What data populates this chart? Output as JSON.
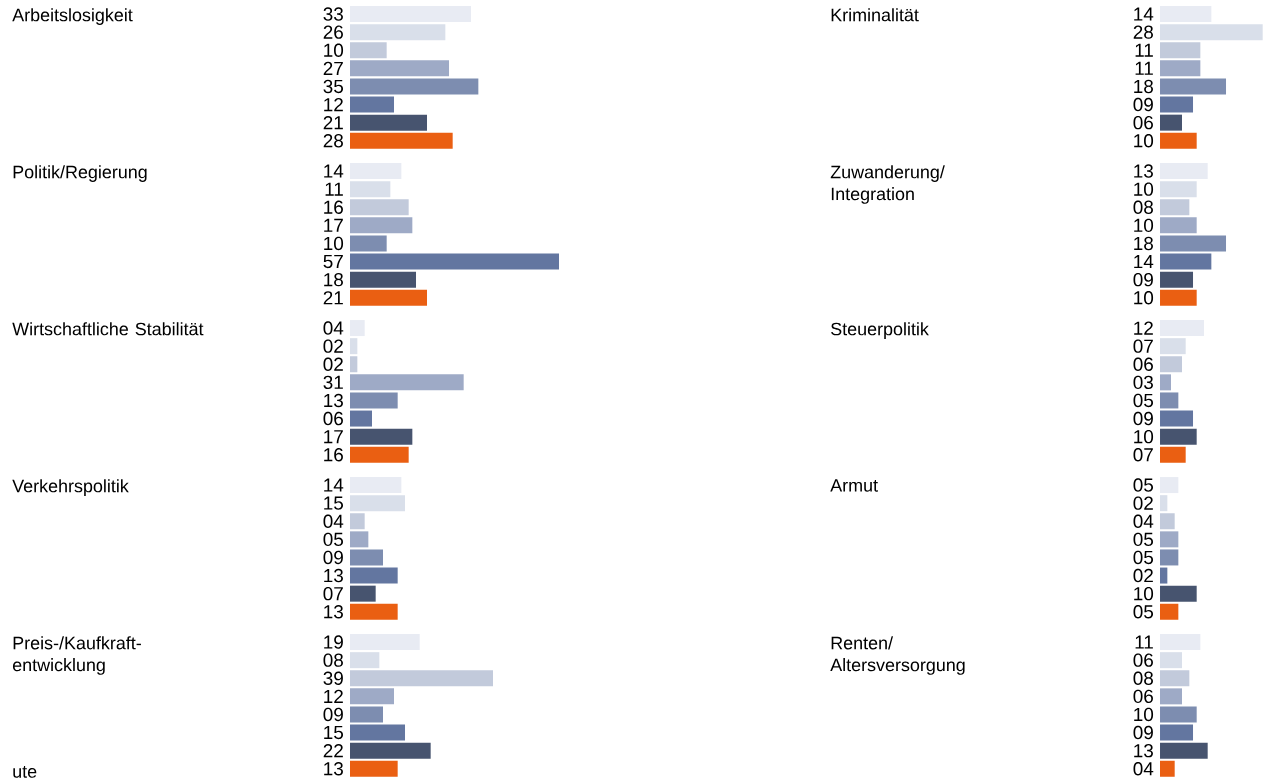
{
  "chart_data": [
    {
      "type": "bar",
      "orientation": "horizontal",
      "ylabel": "Arbeitslosigkeit",
      "categories": [
        null,
        null,
        null,
        null,
        null,
        null,
        null,
        null
      ],
      "values": [
        33,
        26,
        10,
        27,
        35,
        12,
        21,
        28
      ],
      "value_labels": [
        "33",
        "26",
        "10",
        "27",
        "35",
        "12",
        "21",
        "28"
      ],
      "colors": [
        "#e8ebf3",
        "#d9dfea",
        "#c2cadb",
        "#9eaac6",
        "#7d8db0",
        "#6376a0",
        "#47546f",
        "#ea5f12"
      ]
    },
    {
      "type": "bar",
      "orientation": "horizontal",
      "ylabel": "Kriminalität",
      "categories": [
        null,
        null,
        null,
        null,
        null,
        null,
        null,
        null
      ],
      "values": [
        14,
        28,
        11,
        11,
        18,
        9,
        6,
        10
      ],
      "value_labels": [
        "14",
        "28",
        "11",
        "11",
        "18",
        "09",
        "06",
        "10"
      ],
      "colors": [
        "#e8ebf3",
        "#d9dfea",
        "#c2cadb",
        "#9eaac6",
        "#7d8db0",
        "#6376a0",
        "#47546f",
        "#ea5f12"
      ]
    },
    {
      "type": "bar",
      "orientation": "horizontal",
      "ylabel": "Politik/Regierung",
      "categories": [
        null,
        null,
        null,
        null,
        null,
        null,
        null,
        null
      ],
      "values": [
        14,
        11,
        16,
        17,
        10,
        57,
        18,
        21
      ],
      "value_labels": [
        "14",
        "11",
        "16",
        "17",
        "10",
        "57",
        "18",
        "21"
      ],
      "colors": [
        "#e8ebf3",
        "#d9dfea",
        "#c2cadb",
        "#9eaac6",
        "#7d8db0",
        "#6376a0",
        "#47546f",
        "#ea5f12"
      ]
    },
    {
      "type": "bar",
      "orientation": "horizontal",
      "ylabel": "Zuwanderung/ Integration",
      "categories": [
        null,
        null,
        null,
        null,
        null,
        null,
        null,
        null
      ],
      "values": [
        13,
        10,
        8,
        10,
        18,
        14,
        9,
        10
      ],
      "value_labels": [
        "13",
        "10",
        "08",
        "10",
        "18",
        "14",
        "09",
        "10"
      ],
      "colors": [
        "#e8ebf3",
        "#d9dfea",
        "#c2cadb",
        "#9eaac6",
        "#7d8db0",
        "#6376a0",
        "#47546f",
        "#ea5f12"
      ]
    },
    {
      "type": "bar",
      "orientation": "horizontal",
      "ylabel": "Wirtschaftliche Stabilität",
      "categories": [
        null,
        null,
        null,
        null,
        null,
        null,
        null,
        null
      ],
      "values": [
        4,
        2,
        2,
        31,
        13,
        6,
        17,
        16
      ],
      "value_labels": [
        "04",
        "02",
        "02",
        "31",
        "13",
        "06",
        "17",
        "16"
      ],
      "colors": [
        "#e8ebf3",
        "#d9dfea",
        "#c2cadb",
        "#9eaac6",
        "#7d8db0",
        "#6376a0",
        "#47546f",
        "#ea5f12"
      ]
    },
    {
      "type": "bar",
      "orientation": "horizontal",
      "ylabel": "Steuerpolitik",
      "categories": [
        null,
        null,
        null,
        null,
        null,
        null,
        null,
        null
      ],
      "values": [
        12,
        7,
        6,
        3,
        5,
        9,
        10,
        7
      ],
      "value_labels": [
        "12",
        "07",
        "06",
        "03",
        "05",
        "09",
        "10",
        "07"
      ],
      "colors": [
        "#e8ebf3",
        "#d9dfea",
        "#c2cadb",
        "#9eaac6",
        "#7d8db0",
        "#6376a0",
        "#47546f",
        "#ea5f12"
      ]
    },
    {
      "type": "bar",
      "orientation": "horizontal",
      "ylabel": "Verkehrspolitik",
      "categories": [
        null,
        null,
        null,
        null,
        null,
        null,
        null,
        null
      ],
      "values": [
        14,
        15,
        4,
        5,
        9,
        13,
        7,
        13
      ],
      "value_labels": [
        "14",
        "15",
        "04",
        "05",
        "09",
        "13",
        "07",
        "13"
      ],
      "colors": [
        "#e8ebf3",
        "#d9dfea",
        "#c2cadb",
        "#9eaac6",
        "#7d8db0",
        "#6376a0",
        "#47546f",
        "#ea5f12"
      ]
    },
    {
      "type": "bar",
      "orientation": "horizontal",
      "ylabel": "Armut",
      "categories": [
        null,
        null,
        null,
        null,
        null,
        null,
        null,
        null
      ],
      "values": [
        5,
        2,
        4,
        5,
        5,
        2,
        10,
        5
      ],
      "value_labels": [
        "05",
        "02",
        "04",
        "05",
        "05",
        "02",
        "10",
        "05"
      ],
      "colors": [
        "#e8ebf3",
        "#d9dfea",
        "#c2cadb",
        "#9eaac6",
        "#7d8db0",
        "#6376a0",
        "#47546f",
        "#ea5f12"
      ]
    },
    {
      "type": "bar",
      "orientation": "horizontal",
      "ylabel": "Preis-/Kaufkraft-entwicklung",
      "categories": [
        null,
        null,
        null,
        null,
        null,
        null,
        null,
        null
      ],
      "values": [
        19,
        8,
        39,
        12,
        9,
        15,
        22,
        13
      ],
      "value_labels": [
        "19",
        "08",
        "39",
        "12",
        "09",
        "15",
        "22",
        "13"
      ],
      "colors": [
        "#e8ebf3",
        "#d9dfea",
        "#c2cadb",
        "#9eaac6",
        "#7d8db0",
        "#6376a0",
        "#47546f",
        "#ea5f12"
      ],
      "annotations": [
        "ute"
      ]
    },
    {
      "type": "bar",
      "orientation": "horizontal",
      "ylabel": "Renten/ Altersversorgung",
      "categories": [
        null,
        null,
        null,
        null,
        null,
        null,
        null,
        null
      ],
      "values": [
        11,
        6,
        8,
        6,
        10,
        9,
        13,
        4
      ],
      "value_labels": [
        "11",
        "06",
        "08",
        "06",
        "10",
        "09",
        "13",
        "04"
      ],
      "colors": [
        "#e8ebf3",
        "#d9dfea",
        "#c2cadb",
        "#9eaac6",
        "#7d8db0",
        "#6376a0",
        "#47546f",
        "#ea5f12"
      ]
    }
  ]
}
